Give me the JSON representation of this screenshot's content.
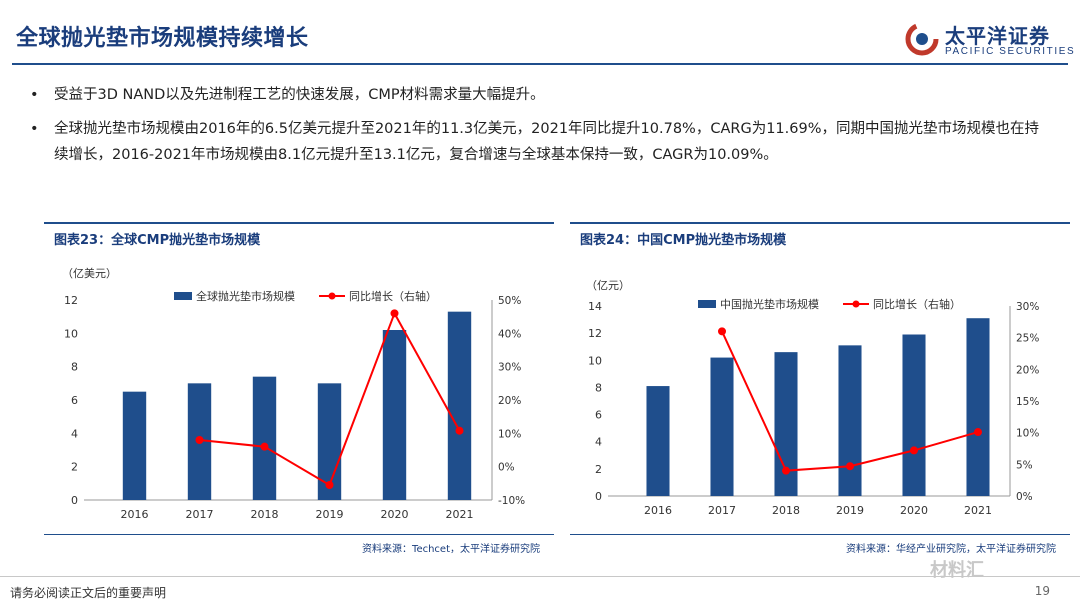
{
  "page": {
    "title": "全球抛光垫市场规模持续增长",
    "logo_cn": "太平洋证券",
    "logo_en": "PACIFIC SECURITIES",
    "brand_color": "#1f4e8c",
    "bullets": [
      "受益于3D NAND以及先进制程工艺的快速发展，CMP材料需求量大幅提升。",
      "全球抛光垫市场规模由2016年的6.5亿美元提升至2021年的11.3亿美元，2021年同比提升10.78%，CARG为11.69%，同期中国抛光垫市场规模也在持续增长，2016-2021年市场规模由8.1亿元提升至13.1亿元，复合增速与全球基本保持一致，CAGR为10.09%。"
    ],
    "footer": "请务必阅读正文后的重要声明",
    "page_number": "19",
    "watermark": "材料汇"
  },
  "chart_data": [
    {
      "type": "bar",
      "header": "图表23：全球CMP抛光垫市场规模",
      "unit_label": "（亿美元）",
      "categories": [
        "2016",
        "2017",
        "2018",
        "2019",
        "2020",
        "2021"
      ],
      "series": [
        {
          "name": "全球抛光垫市场规模",
          "type": "bar",
          "axis": "left",
          "color": "#1f4e8c",
          "values": [
            6.5,
            7.0,
            7.4,
            7.0,
            10.2,
            11.3
          ]
        },
        {
          "name": "同比增长（右轴）",
          "type": "line",
          "axis": "right",
          "color": "#ff0000",
          "values": [
            null,
            8,
            6,
            -5.5,
            46,
            10.78
          ]
        }
      ],
      "ylim_left": [
        0,
        12
      ],
      "yticks_left": [
        "0",
        "2",
        "4",
        "6",
        "8",
        "10",
        "12"
      ],
      "ylim_right": [
        -10,
        50
      ],
      "yticks_right": [
        "-10%",
        "0%",
        "10%",
        "20%",
        "30%",
        "40%",
        "50%"
      ],
      "grid": false,
      "legend": "top",
      "source": "资料来源：Techcet，太平洋证券研究院"
    },
    {
      "type": "bar",
      "header": "图表24：中国CMP抛光垫市场规模",
      "unit_label": "（亿元）",
      "categories": [
        "2016",
        "2017",
        "2018",
        "2019",
        "2020",
        "2021"
      ],
      "series": [
        {
          "name": "中国抛光垫市场规模",
          "type": "bar",
          "axis": "left",
          "color": "#1f4e8c",
          "values": [
            8.1,
            10.2,
            10.6,
            11.1,
            11.9,
            13.1
          ]
        },
        {
          "name": "同比增长（右轴）",
          "type": "line",
          "axis": "right",
          "color": "#ff0000",
          "values": [
            null,
            26,
            4,
            4.7,
            7.2,
            10.1
          ]
        }
      ],
      "ylim_left": [
        0,
        14
      ],
      "yticks_left": [
        "0",
        "2",
        "4",
        "6",
        "8",
        "10",
        "12",
        "14"
      ],
      "ylim_right": [
        0,
        30
      ],
      "yticks_right": [
        "0%",
        "5%",
        "10%",
        "15%",
        "20%",
        "25%",
        "30%"
      ],
      "grid": false,
      "legend": "top",
      "source": "资料来源：华经产业研究院，太平洋证券研究院"
    }
  ]
}
